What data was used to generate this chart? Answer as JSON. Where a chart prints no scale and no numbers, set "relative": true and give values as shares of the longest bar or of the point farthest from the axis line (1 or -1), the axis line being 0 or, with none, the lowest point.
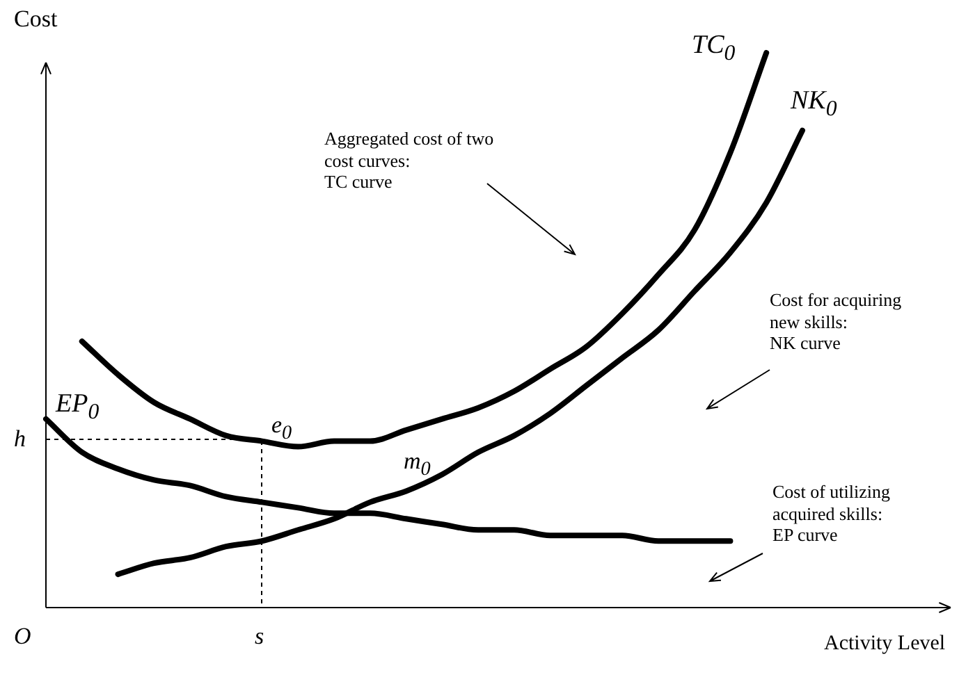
{
  "chart_data": {
    "type": "line",
    "relative": true,
    "xlabel": "Activity Level",
    "ylabel": "Cost",
    "categories": [
      null,
      null,
      null,
      null,
      null,
      null,
      null,
      null,
      null,
      null,
      null,
      null,
      null,
      null,
      null,
      null,
      null,
      null,
      null,
      null,
      null,
      null,
      null,
      null,
      null,
      null
    ],
    "series": [
      {
        "name": "TC$_{0}$",
        "color": "#000000",
        "values": [
          null,
          0.48,
          0.42,
          0.37,
          0.34,
          0.31,
          0.3,
          0.29,
          0.3,
          0.3,
          0.32,
          0.34,
          0.36,
          0.39,
          0.43,
          0.47,
          0.53,
          0.6,
          0.68,
          0.82,
          1.0,
          null,
          null,
          null,
          null,
          null
        ]
      },
      {
        "name": "NK$_{0}$",
        "color": "#000000",
        "values": [
          null,
          null,
          0.06,
          0.08,
          0.09,
          0.11,
          0.12,
          0.14,
          0.16,
          0.19,
          0.21,
          0.24,
          0.28,
          0.31,
          0.35,
          0.4,
          0.45,
          0.5,
          0.57,
          0.64,
          0.73,
          0.86,
          null,
          null,
          null,
          null
        ]
      },
      {
        "name": "EP$_{0}$",
        "color": "#000000",
        "values": [
          0.34,
          0.28,
          0.25,
          0.23,
          0.22,
          0.2,
          0.19,
          0.18,
          0.17,
          0.17,
          0.16,
          0.15,
          0.14,
          0.14,
          0.13,
          0.13,
          0.13,
          0.12,
          0.12,
          0.12,
          null,
          null,
          null,
          null,
          null,
          null
        ]
      }
    ],
    "annotations": [
      "Aggregated cost of two\ncost curves:\nTC curve",
      "Cost for acquiring\nnew skills:\nNK curve",
      "Cost of utilizing\nacquired skills:\nEP curve",
      "e$_{0}$",
      "m$_{0}$",
      "h",
      "s",
      "O"
    ]
  }
}
